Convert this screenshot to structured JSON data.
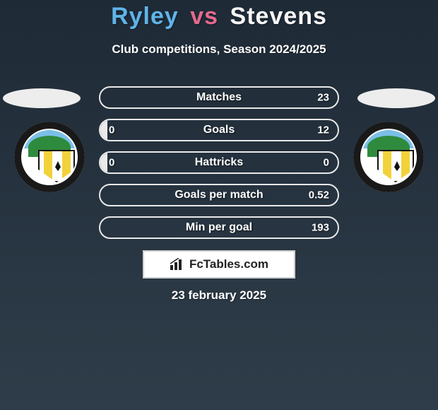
{
  "colors": {
    "background_gradient_top": "#1e2a36",
    "background_gradient_bottom": "#2f3d4a",
    "player1_accent": "#5fb4e8",
    "player2_accent": "#f6f6f6",
    "vs_color": "#e36a8c",
    "text_white": "#ffffff",
    "oval_fill": "#ededed",
    "row_border": "#e9e9e9",
    "row_fill": "#eaeaea",
    "brand_box_bg": "#ffffff",
    "brand_box_border": "#cfcfcf",
    "brand_text": "#222222",
    "crest_sky": "#7bbfe8",
    "crest_hill": "#2e8b3d",
    "crest_stripe": "#f2d23a",
    "crest_ring": "#0a0a0a"
  },
  "title": {
    "player1": "Ryley",
    "vs": "vs",
    "player2": "Stevens",
    "fontsize": 34
  },
  "subtitle": "Club competitions, Season 2024/2025",
  "stats": {
    "label_fontsize": 16,
    "value_fontsize": 15,
    "rows": [
      {
        "label": "Matches",
        "left": "",
        "right": "23",
        "fill_pct": 0
      },
      {
        "label": "Goals",
        "left": "0",
        "right": "12",
        "fill_pct": 3
      },
      {
        "label": "Hattricks",
        "left": "0",
        "right": "0",
        "fill_pct": 3
      },
      {
        "label": "Goals per match",
        "left": "",
        "right": "0.52",
        "fill_pct": 0
      },
      {
        "label": "Min per goal",
        "left": "",
        "right": "193",
        "fill_pct": 0
      }
    ]
  },
  "brand": {
    "text": "FcTables.com",
    "icon": "bar-chart-icon"
  },
  "date": "23 february 2025"
}
